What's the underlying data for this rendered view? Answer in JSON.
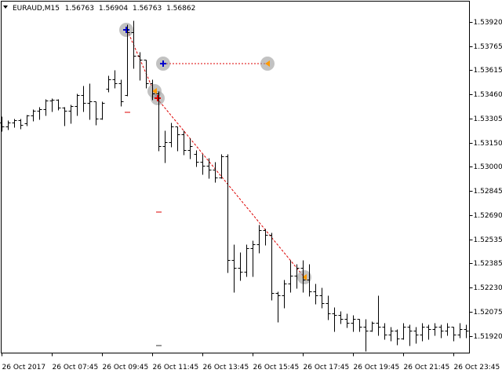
{
  "chart_data": {
    "type": "ohlc",
    "title": "EURAUD,M15",
    "header_values": [
      1.56763,
      1.56904,
      1.56763,
      1.56862
    ],
    "categories": [
      "26 Oct 2017",
      null,
      null,
      null,
      null,
      null,
      null,
      null,
      "26 Oct 07:45",
      null,
      null,
      null,
      null,
      null,
      null,
      null,
      "26 Oct 09:45",
      null,
      null,
      null,
      null,
      null,
      null,
      null,
      "26 Oct 11:45",
      null,
      null,
      null,
      null,
      null,
      null,
      null,
      "26 Oct 13:45",
      null,
      null,
      null,
      null,
      null,
      null,
      null,
      "26 Oct 15:45",
      null,
      null,
      null,
      null,
      null,
      null,
      null,
      "26 Oct 17:45",
      null,
      null,
      null,
      null,
      null,
      null,
      null,
      "26 Oct 19:45",
      null,
      null,
      null,
      null,
      null,
      null,
      null,
      "26 Oct 21:45",
      null,
      null,
      null,
      null,
      null,
      null,
      null,
      "26 Oct 23:45",
      null,
      null
    ],
    "open": [
      1.5328,
      1.53255,
      1.5328,
      1.53295,
      1.53275,
      1.53325,
      1.53355,
      1.53365,
      1.5342,
      1.53425,
      1.53375,
      1.53355,
      1.53385,
      1.53455,
      1.53405,
      1.53415,
      1.53305,
      1.53495,
      1.53555,
      1.5353,
      1.53455,
      1.53855,
      1.53705,
      1.5368,
      1.5353,
      1.53465,
      1.5313,
      1.53155,
      1.53255,
      1.53205,
      1.53105,
      1.5308,
      1.5303,
      1.53005,
      1.5298,
      1.5293,
      1.53065,
      1.52405,
      1.52355,
      1.5233,
      1.5248,
      1.52505,
      1.52595,
      1.52565,
      1.52195,
      1.5218,
      1.52255,
      1.52305,
      1.52355,
      1.5228,
      1.52205,
      1.5218,
      1.5213,
      1.52065,
      1.52055,
      1.5203,
      1.52005,
      1.5203,
      1.5198,
      1.51955,
      1.52005,
      1.5198,
      1.5193,
      1.51955,
      1.51905,
      1.5198,
      1.51955,
      1.5193,
      1.5198,
      1.51965,
      1.5198,
      1.51955,
      1.5198,
      1.5193,
      1.51965
    ],
    "high": [
      1.5332,
      1.53295,
      1.53305,
      1.53305,
      1.5333,
      1.53365,
      1.5338,
      1.5343,
      1.53435,
      1.5343,
      1.5338,
      1.53395,
      1.53465,
      1.53515,
      1.5353,
      1.53415,
      1.53415,
      1.5358,
      1.53615,
      1.53555,
      1.53905,
      1.5393,
      1.5373,
      1.5368,
      1.53555,
      1.5348,
      1.5323,
      1.5328,
      1.53255,
      1.5323,
      1.5318,
      1.53105,
      1.5308,
      1.53055,
      1.5303,
      1.5308,
      1.5308,
      1.52505,
      1.52455,
      1.52505,
      1.5253,
      1.5263,
      1.52605,
      1.5258,
      1.52205,
      1.5228,
      1.52405,
      1.5238,
      1.52405,
      1.5238,
      1.52255,
      1.5223,
      1.5218,
      1.52105,
      1.5208,
      1.52065,
      1.52055,
      1.5203,
      1.5203,
      1.52015,
      1.5218,
      1.52005,
      1.5198,
      1.51965,
      1.52005,
      1.51995,
      1.5198,
      1.52005,
      1.51995,
      1.52005,
      1.51995,
      1.52005,
      1.5198,
      1.52005,
      1.51995
    ],
    "low": [
      1.5323,
      1.5324,
      1.53255,
      1.53245,
      1.53265,
      1.53295,
      1.53305,
      1.5333,
      1.53355,
      1.53365,
      1.53265,
      1.5328,
      1.5333,
      1.53355,
      1.53305,
      1.5327,
      1.53305,
      1.5348,
      1.53505,
      1.5339,
      1.53455,
      1.5363,
      1.53555,
      1.53505,
      1.5343,
      1.53105,
      1.5303,
      1.5313,
      1.53105,
      1.5308,
      1.53055,
      1.53005,
      1.52955,
      1.5293,
      1.52905,
      1.5293,
      1.5233,
      1.52205,
      1.5228,
      1.52305,
      1.52305,
      1.52455,
      1.52505,
      1.52155,
      1.52015,
      1.52105,
      1.52205,
      1.5223,
      1.52205,
      1.5218,
      1.5213,
      1.52105,
      1.5203,
      1.51955,
      1.52005,
      1.5198,
      1.51955,
      1.51955,
      1.5183,
      1.51955,
      1.5193,
      1.51905,
      1.51895,
      1.5187,
      1.51905,
      1.51865,
      1.5188,
      1.51895,
      1.51905,
      1.5193,
      1.51915,
      1.5193,
      1.51895,
      1.51915,
      1.51915
    ],
    "close": [
      1.53255,
      1.5328,
      1.53295,
      1.53265,
      1.53325,
      1.53355,
      1.53365,
      1.5342,
      1.53425,
      1.53375,
      1.53355,
      1.53385,
      1.53455,
      1.53405,
      1.53415,
      1.53305,
      1.53405,
      1.53555,
      1.5353,
      1.53415,
      1.53855,
      1.53705,
      1.5368,
      1.5353,
      1.53465,
      1.5313,
      1.53155,
      1.53255,
      1.53205,
      1.53105,
      1.5313,
      1.5303,
      1.53005,
      1.5298,
      1.5293,
      1.53065,
      1.52405,
      1.52355,
      1.5233,
      1.5248,
      1.52505,
      1.52595,
      1.52565,
      1.52195,
      1.5218,
      1.52255,
      1.52305,
      1.52355,
      1.5228,
      1.52205,
      1.5218,
      1.5213,
      1.52065,
      1.52055,
      1.5203,
      1.52005,
      1.5203,
      1.5198,
      1.51955,
      1.52005,
      1.5198,
      1.5193,
      1.51955,
      1.51905,
      1.5198,
      1.51955,
      1.5193,
      1.5198,
      1.51965,
      1.5198,
      1.51955,
      1.5198,
      1.5193,
      1.51965,
      1.51955
    ],
    "color": "#000000",
    "ylim": [
      1.51815,
      1.54055
    ],
    "yticks": [
      {
        "value": 1.5392,
        "label": "1.53920"
      },
      {
        "value": 1.53765,
        "label": "1.53765"
      },
      {
        "value": 1.53615,
        "label": "1.53615"
      },
      {
        "value": 1.5346,
        "label": "1.53460"
      },
      {
        "value": 1.53305,
        "label": "1.53305"
      },
      {
        "value": 1.5315,
        "label": "1.53150"
      },
      {
        "value": 1.53,
        "label": "1.53000"
      },
      {
        "value": 1.52845,
        "label": "1.52845"
      },
      {
        "value": 1.5269,
        "label": "1.52690"
      },
      {
        "value": 1.52535,
        "label": "1.52535"
      },
      {
        "value": 1.52385,
        "label": "1.52385"
      },
      {
        "value": 1.5223,
        "label": "1.52230"
      },
      {
        "value": 1.52075,
        "label": "1.52075"
      },
      {
        "value": 1.5192,
        "label": "1.51920"
      }
    ]
  }
}
